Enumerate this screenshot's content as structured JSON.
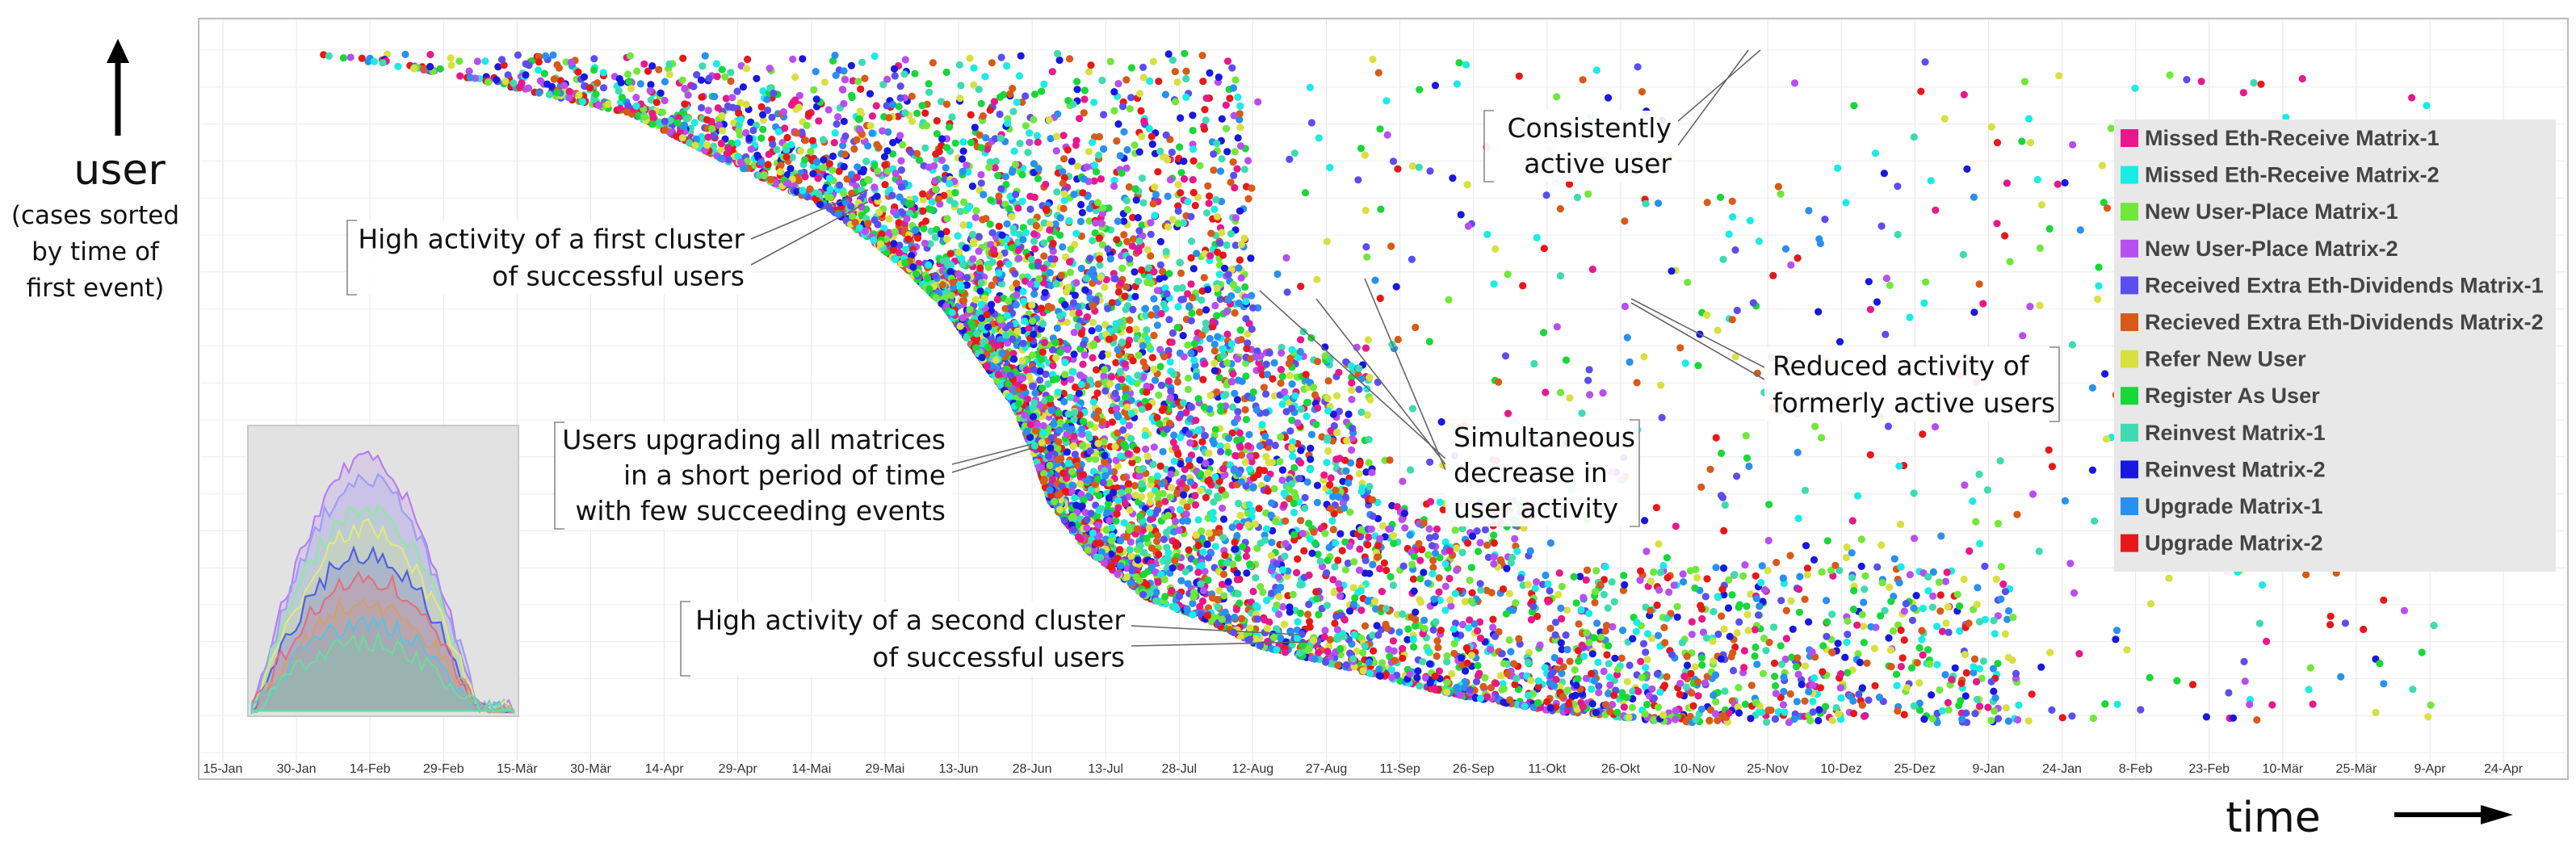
{
  "axis": {
    "y_label": "user",
    "y_sublabel_lines": [
      "(cases sorted",
      "by time of",
      "first event)"
    ],
    "x_label": "time"
  },
  "chart_data": {
    "type": "scatter",
    "title": "",
    "xlabel": "time",
    "ylabel": "user (cases sorted by time of first event)",
    "x_ticks": [
      "15-Jan",
      "30-Jan",
      "14-Feb",
      "29-Feb",
      "15-Mär",
      "30-Mär",
      "14-Apr",
      "29-Apr",
      "14-Mai",
      "29-Mai",
      "13-Jun",
      "28-Jun",
      "13-Jul",
      "28-Jul",
      "12-Aug",
      "27-Aug",
      "11-Sep",
      "26-Sep",
      "11-Okt",
      "26-Okt",
      "10-Nov",
      "25-Nov",
      "10-Dez",
      "25-Dez",
      "9-Jan",
      "24-Jan",
      "8-Feb",
      "23-Feb",
      "10-Mär",
      "25-Mär",
      "9-Apr",
      "24-Apr"
    ],
    "grid": true,
    "legend_position": "right",
    "series": [
      {
        "name": "Missed Eth-Receive Matrix-1",
        "color": "#e8188c"
      },
      {
        "name": "Missed Eth-Receive Matrix-2",
        "color": "#18ece6"
      },
      {
        "name": "New User-Place Matrix-1",
        "color": "#6fe83a"
      },
      {
        "name": "New User-Place Matrix-2",
        "color": "#b84ef0"
      },
      {
        "name": "Received Extra Eth-Dividends Matrix-1",
        "color": "#5b4ef0"
      },
      {
        "name": "Recieved Extra Eth-Dividends Matrix-2",
        "color": "#d85a18"
      },
      {
        "name": "Refer New User",
        "color": "#d8e040"
      },
      {
        "name": "Register As User",
        "color": "#18d838"
      },
      {
        "name": "Reinvest Matrix-1",
        "color": "#3cdcb0"
      },
      {
        "name": "Reinvest Matrix-2",
        "color": "#1818e0"
      },
      {
        "name": "Upgrade Matrix-1",
        "color": "#2890f0"
      },
      {
        "name": "Upgrade Matrix-2",
        "color": "#e81818"
      }
    ],
    "annotations": [
      {
        "id": "consistently-active",
        "lines": [
          "Consistently",
          "active user"
        ]
      },
      {
        "id": "first-cluster",
        "lines": [
          "High activity of a first cluster",
          "of successful users"
        ]
      },
      {
        "id": "reduced-activity",
        "lines": [
          "Reduced activity of",
          "formerly active users"
        ]
      },
      {
        "id": "upgrading",
        "lines": [
          "Users upgrading all matrices",
          "in a short period of time",
          "with few succeeding events"
        ]
      },
      {
        "id": "simultaneous",
        "lines": [
          "Simultaneous",
          "decrease in",
          "user activity"
        ]
      },
      {
        "id": "second-cluster",
        "lines": [
          "High activity of a second cluster",
          "of successful users"
        ]
      }
    ]
  }
}
